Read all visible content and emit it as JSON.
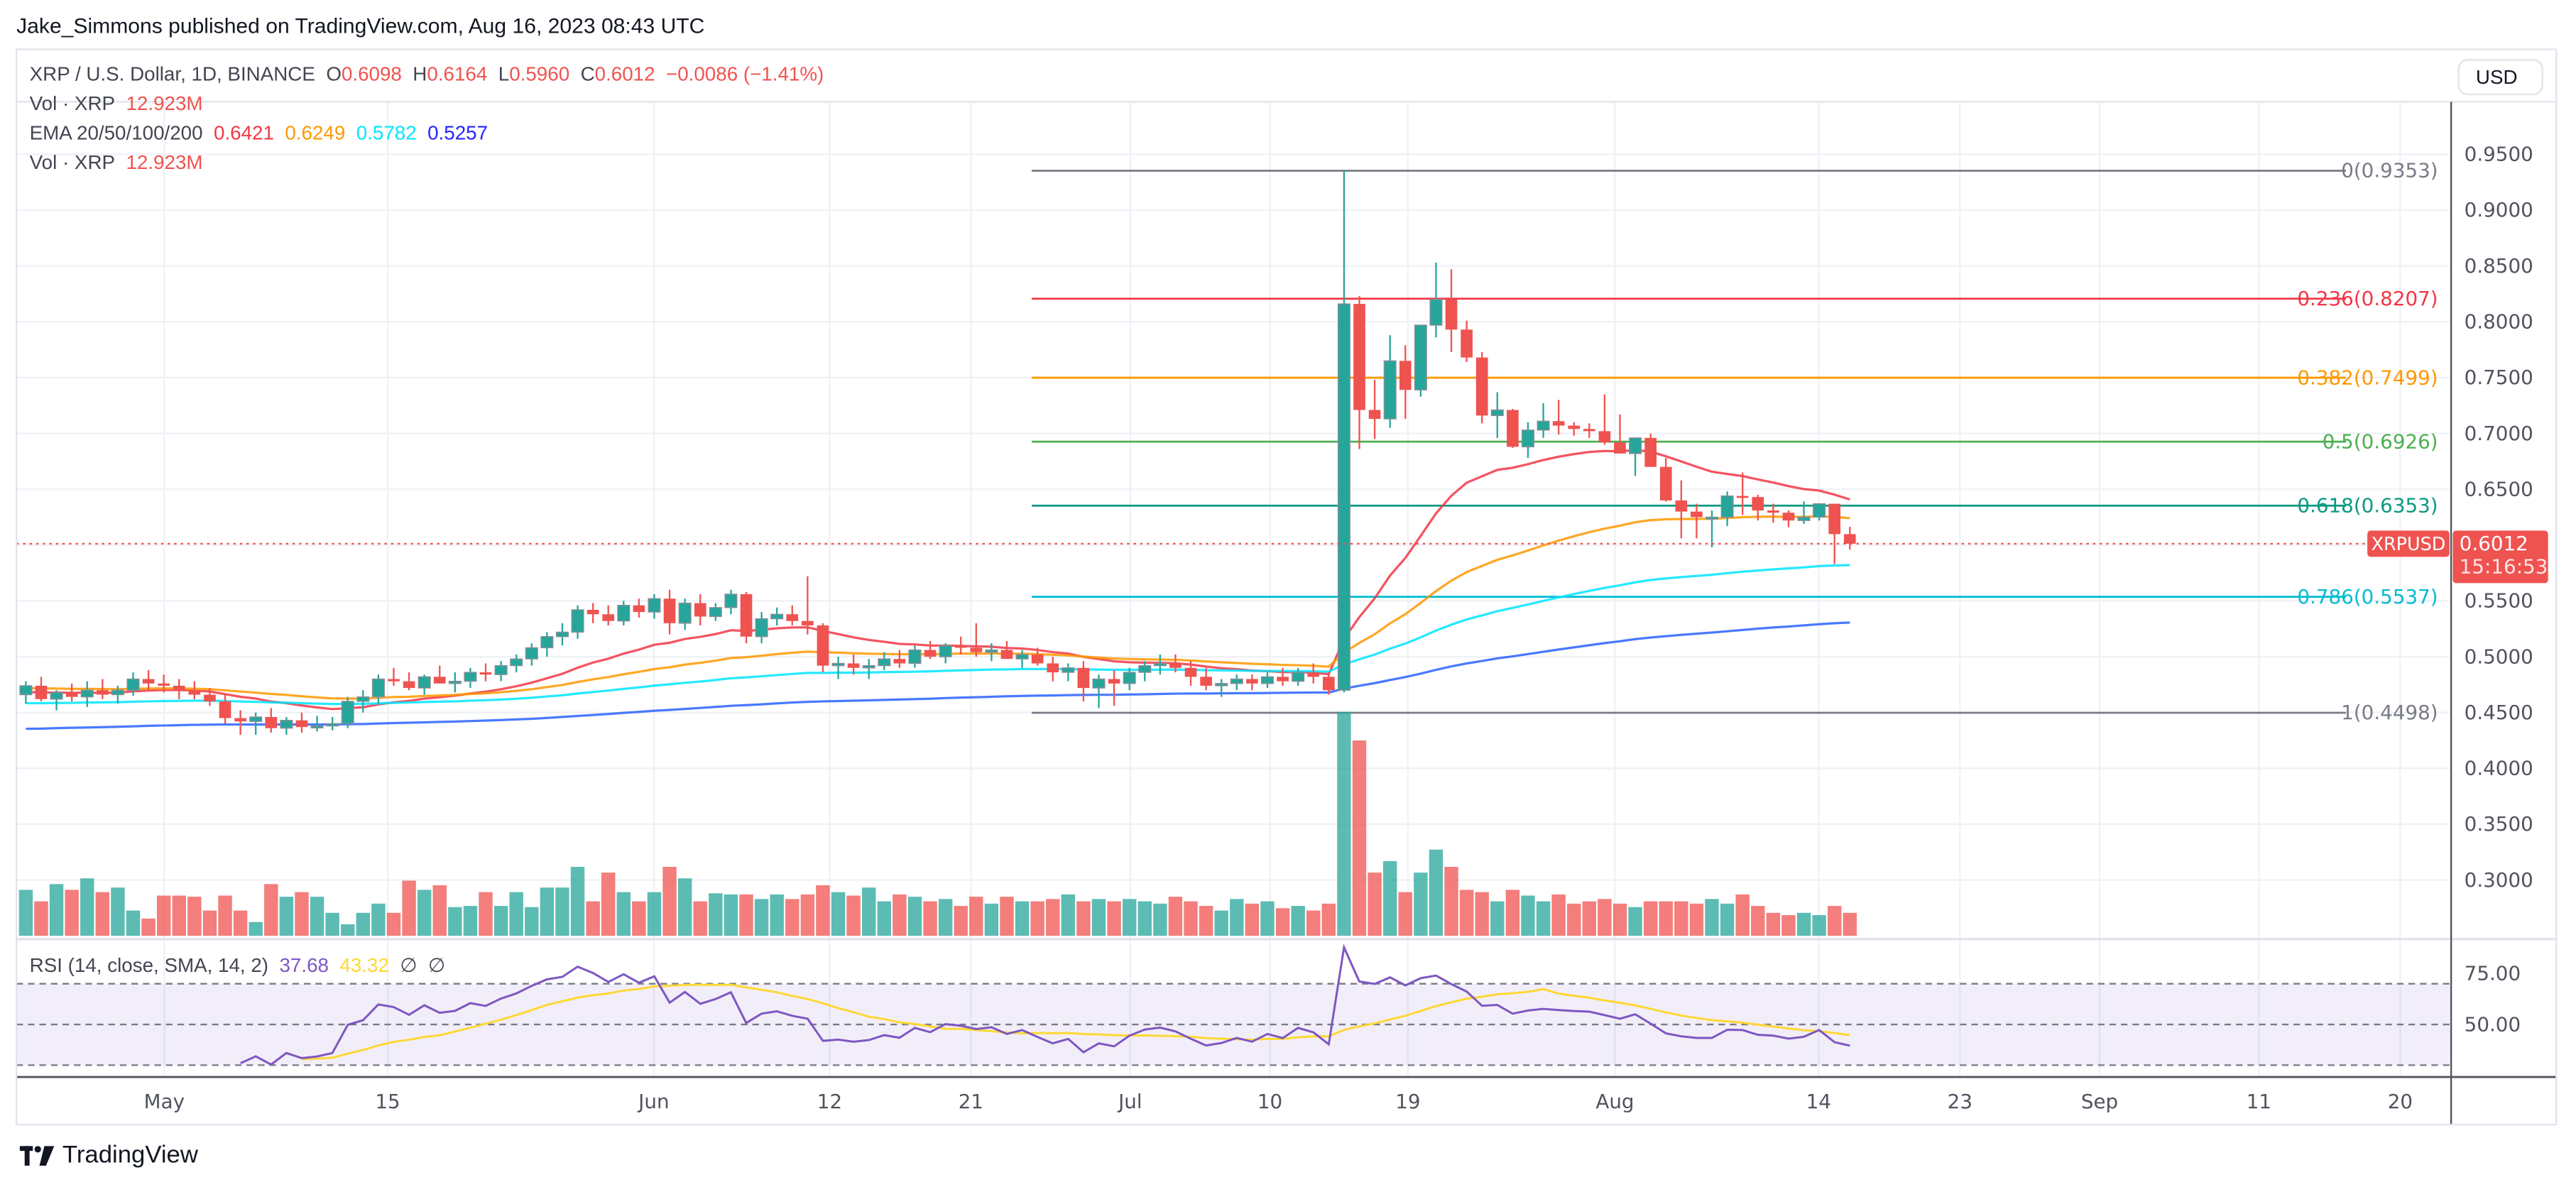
{
  "header": {
    "published_by": "Jake_Simmons published on TradingView.com, Aug 16, 2023 08:43 UTC"
  },
  "legend": {
    "symbol": "XRP / U.S. Dollar, 1D, BINANCE",
    "open_label": "O",
    "open": "0.6098",
    "high_label": "H",
    "high": "0.6164",
    "low_label": "L",
    "low": "0.5960",
    "close_label": "C",
    "close": "0.6012",
    "change": "−0.0086 (−1.41%)",
    "vol_label": "Vol · XRP",
    "vol_value": "12.923M",
    "ema_label": "EMA 20/50/100/200",
    "ema20": "0.6421",
    "ema50": "0.6249",
    "ema100": "0.5782",
    "ema200": "0.5257",
    "vol2_label": "Vol · XRP",
    "vol2_value": "12.923M",
    "rsi_label": "RSI (14, close, SMA, 14, 2)",
    "rsi_value": "37.68",
    "rsi_sma_value": "43.32",
    "rsi_extra1": "∅",
    "rsi_extra2": "∅"
  },
  "currency_button": "USD",
  "price_badge": {
    "symbol": "XRPUSD",
    "price": "0.6012",
    "countdown": "15:16:53"
  },
  "branding": {
    "logo_mark": "TV",
    "logo_text": "TradingView"
  },
  "colors": {
    "up": "#26a69a",
    "down": "#ef5350",
    "ema20": "#f23645",
    "ema50": "#ff9800",
    "ema100": "#00e5ff",
    "ema200": "#2962ff",
    "rsi": "#7e57c2",
    "rsi_sma": "#fdd835"
  },
  "chart_data": {
    "type": "candlestick",
    "title": "XRP / U.S. Dollar, 1D, BINANCE",
    "ylabel": "USD",
    "ylim": [
      0.27,
      0.99
    ],
    "y_ticks": [
      "0.9500",
      "0.9000",
      "0.8500",
      "0.8000",
      "0.7500",
      "0.7000",
      "0.6500",
      "0.6000",
      "0.5500",
      "0.5000",
      "0.4500",
      "0.4000",
      "0.3500",
      "0.3000"
    ],
    "x_ticks": [
      {
        "label": "May",
        "x": 100
      },
      {
        "label": "15",
        "x": 236
      },
      {
        "label": "Jun",
        "x": 398
      },
      {
        "label": "12",
        "x": 505
      },
      {
        "label": "21",
        "x": 591
      },
      {
        "label": "Jul",
        "x": 688
      },
      {
        "label": "10",
        "x": 773
      },
      {
        "label": "19",
        "x": 857
      },
      {
        "label": "Aug",
        "x": 983
      },
      {
        "label": "14",
        "x": 1107
      },
      {
        "label": "23",
        "x": 1193
      },
      {
        "label": "Sep",
        "x": 1278
      },
      {
        "label": "11",
        "x": 1375
      },
      {
        "label": "20",
        "x": 1461
      }
    ],
    "fibonacci": [
      {
        "level": "0",
        "price": "0.9353",
        "label": "0(0.9353)",
        "color": "#787b86"
      },
      {
        "level": "0.236",
        "price": "0.8207",
        "label": "0.236(0.8207)",
        "color": "#f23645"
      },
      {
        "level": "0.382",
        "price": "0.7499",
        "label": "0.382(0.7499)",
        "color": "#ff9800"
      },
      {
        "level": "0.5",
        "price": "0.6926",
        "label": "0.5(0.6926)",
        "color": "#4caf50"
      },
      {
        "level": "0.618",
        "price": "0.6353",
        "label": "0.618(0.6353)",
        "color": "#089981"
      },
      {
        "level": "0.786",
        "price": "0.5537",
        "label": "0.786(0.5537)",
        "color": "#00bcd4"
      },
      {
        "level": "1",
        "price": "0.4498",
        "label": "1(0.4498)",
        "color": "#787b86"
      }
    ],
    "rsi_ticks": [
      "75.00",
      "50.00"
    ],
    "candles_ohlc": [
      [
        0.466,
        0.478,
        0.458,
        0.474
      ],
      [
        0.474,
        0.482,
        0.46,
        0.462
      ],
      [
        0.462,
        0.47,
        0.452,
        0.468
      ],
      [
        0.468,
        0.476,
        0.46,
        0.464
      ],
      [
        0.464,
        0.478,
        0.455,
        0.47
      ],
      [
        0.47,
        0.48,
        0.462,
        0.466
      ],
      [
        0.466,
        0.474,
        0.458,
        0.47
      ],
      [
        0.47,
        0.486,
        0.465,
        0.48
      ],
      [
        0.48,
        0.488,
        0.47,
        0.476
      ],
      [
        0.476,
        0.484,
        0.468,
        0.474
      ],
      [
        0.474,
        0.48,
        0.462,
        0.47
      ],
      [
        0.47,
        0.478,
        0.462,
        0.466
      ],
      [
        0.466,
        0.472,
        0.456,
        0.46
      ],
      [
        0.46,
        0.466,
        0.44,
        0.445
      ],
      [
        0.445,
        0.452,
        0.43,
        0.442
      ],
      [
        0.442,
        0.45,
        0.43,
        0.446
      ],
      [
        0.446,
        0.454,
        0.432,
        0.436
      ],
      [
        0.436,
        0.446,
        0.43,
        0.443
      ],
      [
        0.443,
        0.45,
        0.432,
        0.437
      ],
      [
        0.437,
        0.447,
        0.433,
        0.438
      ],
      [
        0.438,
        0.446,
        0.434,
        0.44
      ],
      [
        0.44,
        0.464,
        0.436,
        0.46
      ],
      [
        0.46,
        0.47,
        0.45,
        0.464
      ],
      [
        0.464,
        0.484,
        0.458,
        0.48
      ],
      [
        0.48,
        0.49,
        0.474,
        0.478
      ],
      [
        0.478,
        0.486,
        0.47,
        0.472
      ],
      [
        0.472,
        0.484,
        0.466,
        0.482
      ],
      [
        0.482,
        0.492,
        0.476,
        0.476
      ],
      [
        0.476,
        0.486,
        0.468,
        0.478
      ],
      [
        0.478,
        0.49,
        0.472,
        0.486
      ],
      [
        0.486,
        0.494,
        0.478,
        0.484
      ],
      [
        0.484,
        0.496,
        0.478,
        0.492
      ],
      [
        0.492,
        0.502,
        0.486,
        0.498
      ],
      [
        0.498,
        0.512,
        0.492,
        0.508
      ],
      [
        0.508,
        0.522,
        0.5,
        0.518
      ],
      [
        0.518,
        0.53,
        0.51,
        0.522
      ],
      [
        0.522,
        0.546,
        0.516,
        0.542
      ],
      [
        0.542,
        0.548,
        0.53,
        0.538
      ],
      [
        0.538,
        0.546,
        0.528,
        0.532
      ],
      [
        0.532,
        0.55,
        0.528,
        0.546
      ],
      [
        0.546,
        0.552,
        0.535,
        0.54
      ],
      [
        0.54,
        0.556,
        0.534,
        0.552
      ],
      [
        0.552,
        0.56,
        0.52,
        0.53
      ],
      [
        0.53,
        0.552,
        0.524,
        0.548
      ],
      [
        0.548,
        0.556,
        0.528,
        0.536
      ],
      [
        0.536,
        0.548,
        0.532,
        0.544
      ],
      [
        0.544,
        0.56,
        0.538,
        0.556
      ],
      [
        0.556,
        0.558,
        0.512,
        0.518
      ],
      [
        0.518,
        0.54,
        0.512,
        0.534
      ],
      [
        0.534,
        0.544,
        0.528,
        0.538
      ],
      [
        0.538,
        0.546,
        0.528,
        0.532
      ],
      [
        0.532,
        0.572,
        0.52,
        0.528
      ],
      [
        0.528,
        0.53,
        0.486,
        0.492
      ],
      [
        0.492,
        0.5,
        0.48,
        0.494
      ],
      [
        0.494,
        0.502,
        0.484,
        0.49
      ],
      [
        0.49,
        0.498,
        0.48,
        0.492
      ],
      [
        0.492,
        0.504,
        0.488,
        0.498
      ],
      [
        0.498,
        0.506,
        0.49,
        0.494
      ],
      [
        0.494,
        0.51,
        0.49,
        0.506
      ],
      [
        0.506,
        0.514,
        0.498,
        0.5
      ],
      [
        0.5,
        0.512,
        0.494,
        0.51
      ],
      [
        0.51,
        0.518,
        0.502,
        0.508
      ],
      [
        0.508,
        0.53,
        0.5,
        0.504
      ],
      [
        0.504,
        0.512,
        0.496,
        0.506
      ],
      [
        0.506,
        0.514,
        0.5,
        0.498
      ],
      [
        0.498,
        0.506,
        0.49,
        0.502
      ],
      [
        0.502,
        0.508,
        0.492,
        0.494
      ],
      [
        0.494,
        0.5,
        0.478,
        0.486
      ],
      [
        0.486,
        0.494,
        0.478,
        0.49
      ],
      [
        0.49,
        0.496,
        0.46,
        0.472
      ],
      [
        0.472,
        0.484,
        0.454,
        0.48
      ],
      [
        0.48,
        0.488,
        0.456,
        0.476
      ],
      [
        0.476,
        0.49,
        0.47,
        0.486
      ],
      [
        0.486,
        0.496,
        0.478,
        0.492
      ],
      [
        0.492,
        0.502,
        0.484,
        0.494
      ],
      [
        0.494,
        0.502,
        0.486,
        0.49
      ],
      [
        0.49,
        0.496,
        0.474,
        0.482
      ],
      [
        0.482,
        0.49,
        0.47,
        0.474
      ],
      [
        0.474,
        0.48,
        0.464,
        0.476
      ],
      [
        0.476,
        0.484,
        0.47,
        0.48
      ],
      [
        0.48,
        0.484,
        0.47,
        0.476
      ],
      [
        0.476,
        0.486,
        0.472,
        0.482
      ],
      [
        0.482,
        0.49,
        0.474,
        0.478
      ],
      [
        0.478,
        0.49,
        0.474,
        0.486
      ],
      [
        0.486,
        0.494,
        0.476,
        0.482
      ],
      [
        0.482,
        0.486,
        0.466,
        0.47
      ],
      [
        0.47,
        0.9353,
        0.468,
        0.816
      ],
      [
        0.816,
        0.823,
        0.686,
        0.721
      ],
      [
        0.721,
        0.748,
        0.695,
        0.713
      ],
      [
        0.713,
        0.788,
        0.705,
        0.765
      ],
      [
        0.765,
        0.779,
        0.713,
        0.739
      ],
      [
        0.739,
        0.796,
        0.733,
        0.797
      ],
      [
        0.797,
        0.853,
        0.786,
        0.82
      ],
      [
        0.82,
        0.847,
        0.773,
        0.793
      ],
      [
        0.793,
        0.801,
        0.764,
        0.768
      ],
      [
        0.768,
        0.773,
        0.709,
        0.716
      ],
      [
        0.716,
        0.737,
        0.696,
        0.721
      ],
      [
        0.721,
        0.722,
        0.687,
        0.688
      ],
      [
        0.688,
        0.71,
        0.678,
        0.703
      ],
      [
        0.703,
        0.727,
        0.696,
        0.711
      ],
      [
        0.711,
        0.73,
        0.699,
        0.707
      ],
      [
        0.707,
        0.71,
        0.698,
        0.704
      ],
      [
        0.704,
        0.709,
        0.696,
        0.702
      ],
      [
        0.702,
        0.735,
        0.69,
        0.692
      ],
      [
        0.692,
        0.717,
        0.685,
        0.682
      ],
      [
        0.682,
        0.692,
        0.662,
        0.696
      ],
      [
        0.696,
        0.7,
        0.674,
        0.67
      ],
      [
        0.67,
        0.678,
        0.639,
        0.64
      ],
      [
        0.64,
        0.658,
        0.606,
        0.63
      ],
      [
        0.63,
        0.637,
        0.606,
        0.625
      ],
      [
        0.625,
        0.631,
        0.598,
        0.625
      ],
      [
        0.625,
        0.648,
        0.617,
        0.644
      ],
      [
        0.644,
        0.665,
        0.627,
        0.643
      ],
      [
        0.643,
        0.645,
        0.622,
        0.631
      ],
      [
        0.631,
        0.637,
        0.62,
        0.629
      ],
      [
        0.629,
        0.631,
        0.616,
        0.622
      ],
      [
        0.622,
        0.639,
        0.619,
        0.625
      ],
      [
        0.625,
        0.636,
        0.622,
        0.637
      ],
      [
        0.637,
        0.637,
        0.583,
        0.6098
      ],
      [
        0.6098,
        0.6164,
        0.596,
        0.6012
      ]
    ],
    "volume_relative": [
      0.4,
      0.3,
      0.45,
      0.4,
      0.5,
      0.38,
      0.42,
      0.22,
      0.15,
      0.35,
      0.35,
      0.34,
      0.22,
      0.35,
      0.22,
      0.12,
      0.45,
      0.34,
      0.38,
      0.34,
      0.2,
      0.1,
      0.2,
      0.28,
      0.2,
      0.48,
      0.4,
      0.44,
      0.25,
      0.26,
      0.38,
      0.26,
      0.38,
      0.25,
      0.42,
      0.42,
      0.6,
      0.3,
      0.55,
      0.38,
      0.3,
      0.38,
      0.6,
      0.5,
      0.3,
      0.37,
      0.36,
      0.36,
      0.32,
      0.36,
      0.32,
      0.36,
      0.44,
      0.38,
      0.35,
      0.42,
      0.3,
      0.36,
      0.34,
      0.3,
      0.32,
      0.26,
      0.34,
      0.28,
      0.34,
      0.3,
      0.3,
      0.32,
      0.36,
      0.3,
      0.32,
      0.3,
      0.32,
      0.3,
      0.28,
      0.34,
      0.3,
      0.26,
      0.22,
      0.32,
      0.28,
      0.3,
      0.24,
      0.26,
      0.22,
      0.28,
      1.95,
      1.7,
      0.55,
      0.65,
      0.38,
      0.55,
      0.75,
      0.6,
      0.4,
      0.38,
      0.3,
      0.4,
      0.35,
      0.3,
      0.36,
      0.28,
      0.3,
      0.32,
      0.28,
      0.25,
      0.3,
      0.3,
      0.3,
      0.28,
      0.32,
      0.28,
      0.36,
      0.26,
      0.2,
      0.18,
      0.2,
      0.18,
      0.26,
      0.2
    ]
  }
}
